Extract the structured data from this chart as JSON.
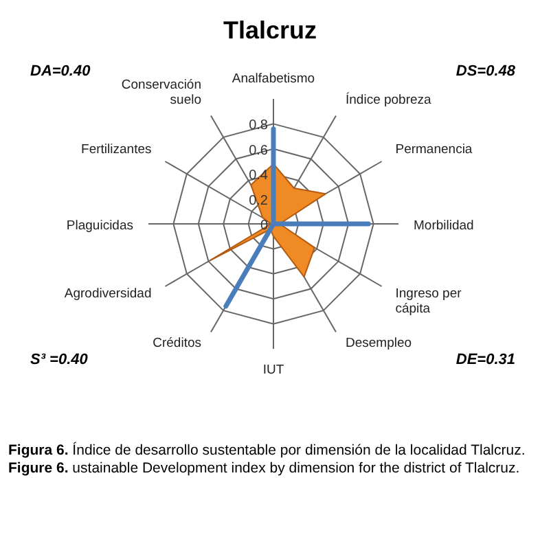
{
  "chart_data": {
    "type": "radar",
    "title": "Tlalcruz",
    "categories": [
      "Analfabetismo",
      "Índice pobreza",
      "Permanencia",
      "Morbilidad",
      "Ingreso per cápita",
      "Desempleo",
      "IUT",
      "Créditos",
      "Agrodiversidad",
      "Plaguicidas",
      "Fertilizantes",
      "Conservación suelo"
    ],
    "series": [
      {
        "color": "#f08a24",
        "values": [
          0.48,
          0.33,
          0.48,
          0.05,
          0.38,
          0.49,
          0.1,
          0.05,
          0.58,
          0.02,
          0.1,
          0.36
        ]
      },
      {
        "line_style": "solid",
        "color": "#4a7ebb",
        "values": [
          0.76,
          0,
          0,
          0.76,
          0,
          0,
          0,
          0.76,
          0,
          0,
          0,
          0
        ]
      }
    ],
    "ylim": [
      0,
      0.8
    ],
    "yticks": [
      0,
      0.2,
      0.4,
      0.6,
      0.8
    ],
    "grid": true,
    "annotations": [
      "DA=0.40",
      "DS=0.48",
      "S³ =0.40",
      "DE=0.31",
      "Figura 6.  Índice de desarrollo sustentable por dimensión de la localidad Tlalcruz.",
      "Figure 6.  ustainable Development index by dimension for the district of Tlalcruz."
    ]
  }
}
